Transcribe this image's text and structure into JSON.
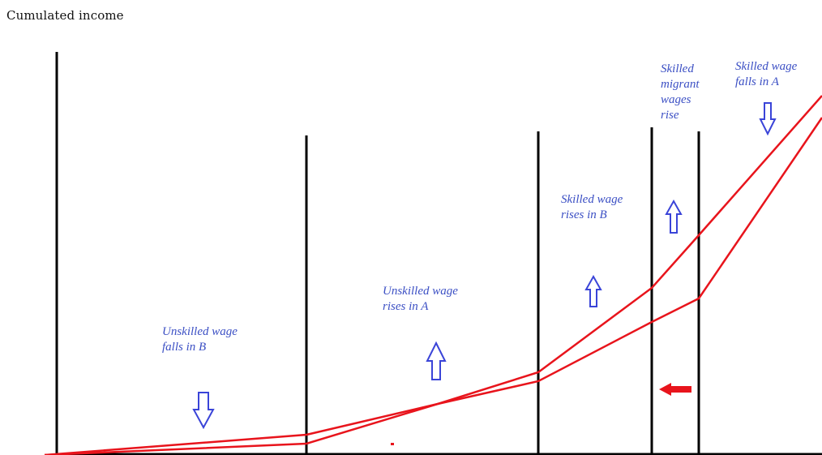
{
  "title": "Cumulated income",
  "colors": {
    "axis": "#000000",
    "income_line": "#e8141c",
    "annotation_text": "#3b4fc4",
    "arrow": "#3a44d8",
    "shift_arrow": "#e8141c"
  },
  "annotations": [
    {
      "text": "Unskilled wage\nfalls in B",
      "arrow": "down"
    },
    {
      "text": "Unskilled wage\nrises in A",
      "arrow": "up"
    },
    {
      "text": "Skilled wage\nrises in B",
      "arrow": "up"
    },
    {
      "text": "Skilled\nmigrant\nwages\nrise",
      "arrow": "up"
    },
    {
      "text": "Skilled wage\nfalls in A",
      "arrow": "down"
    }
  ],
  "shift_arrow": {
    "direction": "left"
  }
}
